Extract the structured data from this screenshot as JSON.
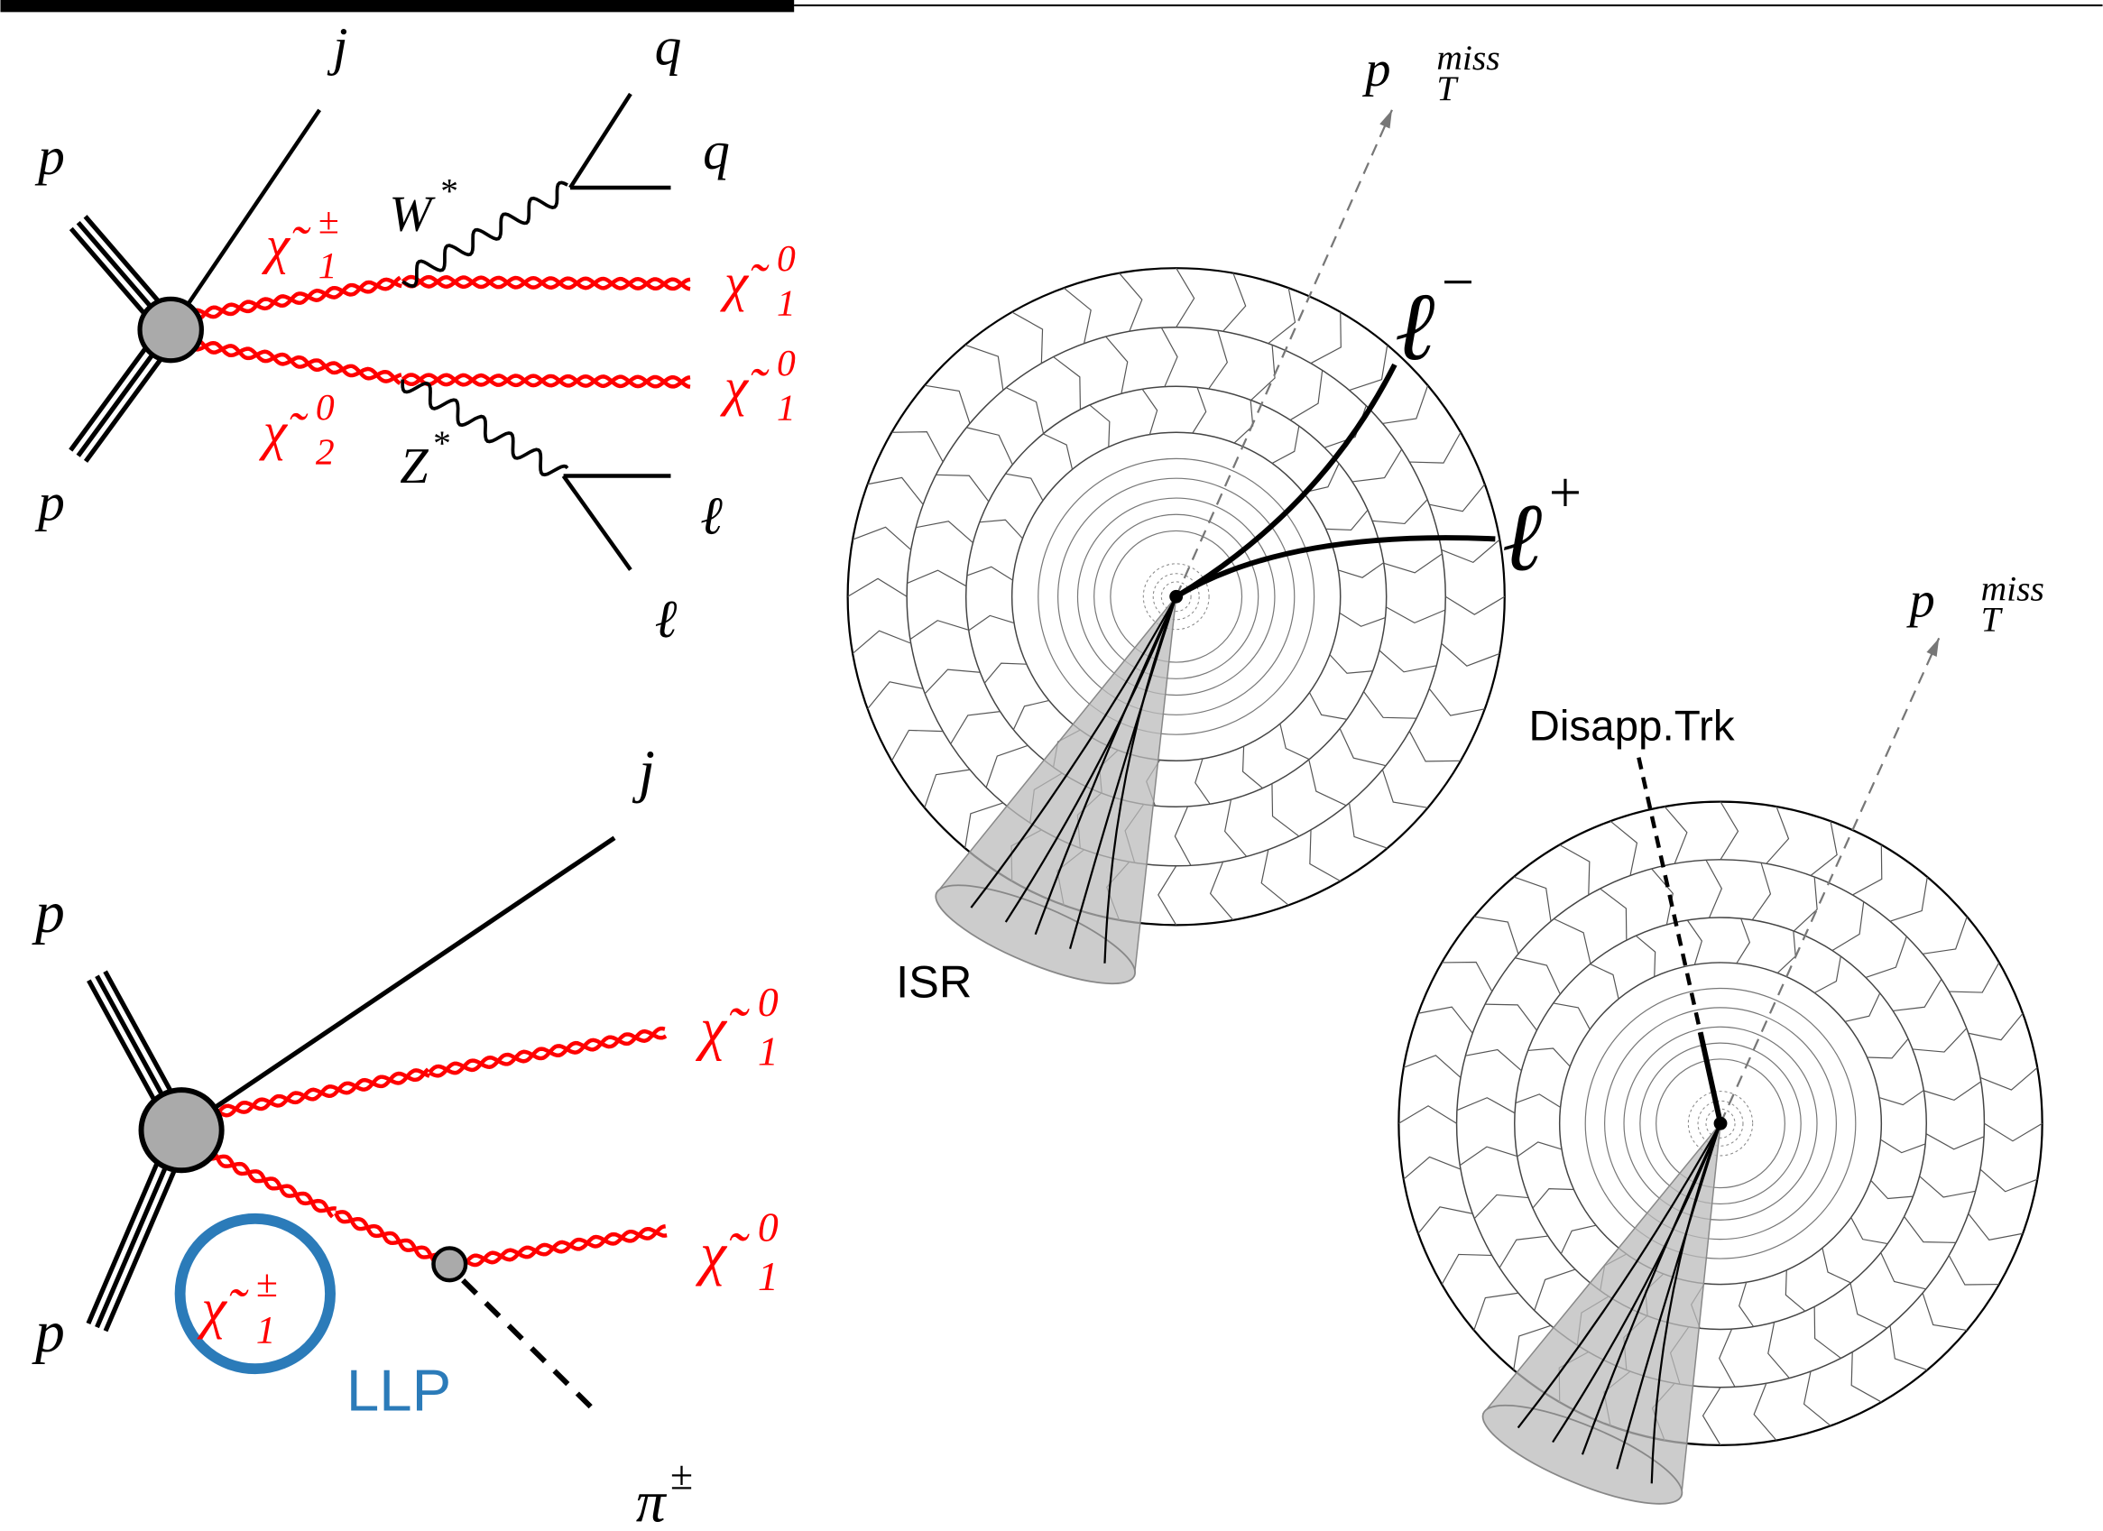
{
  "labels": [
    {
      "text": "p"
    },
    {
      "text": "p"
    },
    {
      "text": "j"
    },
    {
      "text": "q"
    },
    {
      "text": "q"
    },
    {
      "text": "W",
      "sup": "*"
    },
    {
      "text": "Z",
      "sup": "*"
    },
    {
      "text": "ℓ"
    },
    {
      "text": "ℓ"
    },
    {
      "text": "χ̃",
      "sup": "±",
      "sub": "1"
    },
    {
      "text": "χ̃",
      "sup": "0",
      "sub": "2"
    },
    {
      "text": "χ̃",
      "sup": "0",
      "sub": "1"
    },
    {
      "text": "χ̃",
      "sup": "0",
      "sub": "1"
    },
    {
      "text": "p"
    },
    {
      "text": "p"
    },
    {
      "text": "j"
    },
    {
      "text": "χ̃",
      "sup": "0",
      "sub": "1"
    },
    {
      "text": "χ̃",
      "sup": "0",
      "sub": "1"
    },
    {
      "text": "χ̃",
      "sup": "±",
      "sub": "1"
    },
    {
      "text": "π",
      "sup": "±"
    },
    {
      "text": "LLP"
    },
    {
      "text": "ISR"
    },
    {
      "text": "Disapp.Trk"
    },
    {
      "text": "p⃗",
      "sup": "miss",
      "sub": "T"
    },
    {
      "text": "p⃗",
      "sup": "miss",
      "sub": "T"
    },
    {
      "text": "ℓ",
      "sup": "−"
    },
    {
      "text": "ℓ",
      "sup": "+"
    }
  ]
}
